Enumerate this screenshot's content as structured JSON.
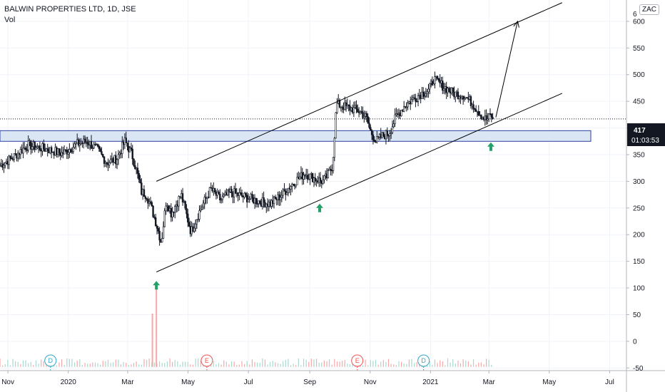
{
  "header": {
    "symbol": "BALWIN PROPERTIES LTD, 1D, JSE",
    "volume_label": "Vol",
    "currency": "ZAC"
  },
  "price_badge": {
    "value": "417",
    "countdown": "01:03:53",
    "color": "#131722"
  },
  "colors": {
    "candle": "#131722",
    "volume": "#f7a9a9",
    "volume_alt": "#a8d9cf",
    "zone_fill": "#dbe6f5",
    "zone_stroke": "#2a3fa0",
    "arrow": "#26a069",
    "event_e": "#ef5350",
    "event_d": "#2ea7c9"
  },
  "chart_data": {
    "type": "candlestick",
    "title": "BALWIN PROPERTIES LTD, 1D, JSE",
    "price_axis": {
      "ticks": [
        -50,
        0,
        50,
        100,
        150,
        200,
        250,
        300,
        350,
        400,
        450,
        500,
        550,
        600
      ],
      "top_partial_label": "6"
    },
    "time_axis": {
      "ticks": [
        {
          "label": "Nov",
          "t": 0
        },
        {
          "label": "2020",
          "t": 61
        },
        {
          "label": "Mar",
          "t": 121
        },
        {
          "label": "May",
          "t": 182
        },
        {
          "label": "Jul",
          "t": 243
        },
        {
          "label": "Sep",
          "t": 305
        },
        {
          "label": "Nov",
          "t": 366
        },
        {
          "label": "2021",
          "t": 427
        },
        {
          "label": "Mar",
          "t": 486
        },
        {
          "label": "May",
          "t": 547
        },
        {
          "label": "Jul",
          "t": 608
        }
      ]
    },
    "ylim": [
      -55,
      640
    ],
    "xlim": [
      -8,
      625
    ],
    "close_path": [
      [
        -8,
        330
      ],
      [
        5,
        345
      ],
      [
        20,
        368
      ],
      [
        40,
        360
      ],
      [
        55,
        352
      ],
      [
        70,
        370
      ],
      [
        80,
        375
      ],
      [
        90,
        360
      ],
      [
        100,
        335
      ],
      [
        110,
        342
      ],
      [
        118,
        375
      ],
      [
        125,
        352
      ],
      [
        130,
        320
      ],
      [
        135,
        280
      ],
      [
        140,
        275
      ],
      [
        145,
        250
      ],
      [
        150,
        220
      ],
      [
        155,
        185
      ],
      [
        160,
        265
      ],
      [
        165,
        240
      ],
      [
        175,
        275
      ],
      [
        185,
        205
      ],
      [
        195,
        250
      ],
      [
        205,
        285
      ],
      [
        215,
        265
      ],
      [
        225,
        280
      ],
      [
        240,
        270
      ],
      [
        255,
        262
      ],
      [
        265,
        258
      ],
      [
        275,
        272
      ],
      [
        290,
        300
      ],
      [
        300,
        315
      ],
      [
        310,
        305
      ],
      [
        318,
        300
      ],
      [
        323,
        310
      ],
      [
        328,
        330
      ],
      [
        332,
        445
      ],
      [
        340,
        440
      ],
      [
        355,
        432
      ],
      [
        362,
        420
      ],
      [
        366,
        395
      ],
      [
        372,
        375
      ],
      [
        378,
        385
      ],
      [
        385,
        390
      ],
      [
        392,
        420
      ],
      [
        400,
        440
      ],
      [
        410,
        455
      ],
      [
        418,
        465
      ],
      [
        425,
        470
      ],
      [
        430,
        492
      ],
      [
        440,
        478
      ],
      [
        450,
        465
      ],
      [
        460,
        462
      ],
      [
        470,
        445
      ],
      [
        480,
        420
      ],
      [
        484,
        415
      ],
      [
        488,
        425
      ],
      [
        490,
        417
      ]
    ],
    "annotations": {
      "channel_lower": [
        [
          150,
          130
        ],
        [
          560,
          465
        ]
      ],
      "channel_upper": [
        [
          150,
          300
        ],
        [
          560,
          635
        ]
      ],
      "target_arrow": [
        [
          493,
          420
        ],
        [
          515,
          600
        ]
      ],
      "support_zone": [
        375,
        395
      ],
      "last_price": 417,
      "up_arrows": [
        {
          "t": 150,
          "value": 105
        },
        {
          "t": 315,
          "value": 250
        },
        {
          "t": 488,
          "value": 365
        }
      ],
      "volume_spikes": [
        {
          "t": 146,
          "value": 52
        },
        {
          "t": 150,
          "value": 100
        }
      ],
      "events": [
        {
          "label": "D",
          "t": 43,
          "kind": "dividend"
        },
        {
          "label": "E",
          "t": 201,
          "kind": "earnings"
        },
        {
          "label": "E",
          "t": 353,
          "kind": "earnings"
        },
        {
          "label": "D",
          "t": 420,
          "kind": "dividend"
        }
      ]
    }
  }
}
